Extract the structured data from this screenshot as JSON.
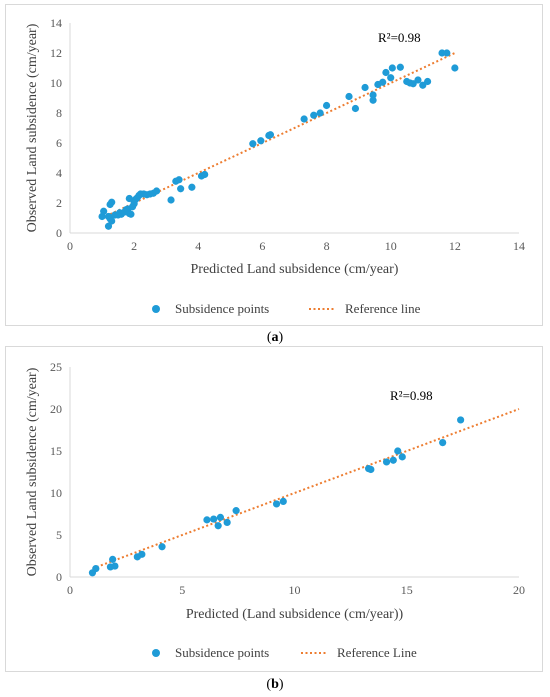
{
  "captions": [
    "a",
    "b"
  ],
  "chart_data": [
    {
      "type": "scatter",
      "xlabel": "Predicted Land subsidence (cm/year)",
      "ylabel": "Observed Land subsidence (cm/year)",
      "xlim": [
        0,
        14
      ],
      "ylim": [
        0,
        14
      ],
      "xticks": [
        "0",
        "2",
        "4",
        "6",
        "8",
        "10",
        "12",
        "14"
      ],
      "yticks": [
        "0",
        "2",
        "4",
        "6",
        "8",
        "10",
        "12",
        "14"
      ],
      "annotation": "R²=0.98",
      "legend_placement": "bottom",
      "legend": [
        "Subsidence points",
        "Reference line"
      ],
      "grid": false,
      "colors": {
        "points": "#1f9bd7",
        "reference": "#ed7d31"
      },
      "reference_line": [
        [
          1,
          1
        ],
        [
          12,
          12
        ]
      ],
      "series": [
        {
          "name": "Subsidence points",
          "points": [
            [
              1.0,
              1.1
            ],
            [
              1.05,
              1.45
            ],
            [
              1.2,
              1.1
            ],
            [
              1.25,
              0.95
            ],
            [
              1.2,
              0.45
            ],
            [
              1.3,
              0.8
            ],
            [
              1.25,
              1.9
            ],
            [
              1.3,
              2.05
            ],
            [
              1.4,
              1.2
            ],
            [
              1.5,
              1.2
            ],
            [
              1.55,
              1.35
            ],
            [
              1.6,
              1.25
            ],
            [
              1.7,
              1.4
            ],
            [
              1.75,
              1.55
            ],
            [
              1.8,
              1.6
            ],
            [
              1.85,
              1.3
            ],
            [
              1.85,
              2.3
            ],
            [
              1.9,
              1.25
            ],
            [
              1.95,
              1.75
            ],
            [
              2.0,
              1.95
            ],
            [
              2.0,
              2.1
            ],
            [
              2.05,
              2.25
            ],
            [
              2.1,
              2.35
            ],
            [
              2.15,
              2.5
            ],
            [
              2.2,
              2.6
            ],
            [
              2.3,
              2.6
            ],
            [
              2.4,
              2.55
            ],
            [
              2.5,
              2.6
            ],
            [
              2.6,
              2.65
            ],
            [
              2.7,
              2.8
            ],
            [
              3.15,
              2.2
            ],
            [
              3.3,
              3.45
            ],
            [
              3.4,
              3.55
            ],
            [
              3.45,
              2.95
            ],
            [
              3.8,
              3.05
            ],
            [
              4.1,
              3.8
            ],
            [
              4.2,
              3.9
            ],
            [
              5.7,
              5.95
            ],
            [
              5.95,
              6.15
            ],
            [
              6.2,
              6.5
            ],
            [
              6.25,
              6.55
            ],
            [
              7.3,
              7.6
            ],
            [
              7.6,
              7.85
            ],
            [
              7.8,
              8.0
            ],
            [
              8.0,
              8.5
            ],
            [
              8.7,
              9.1
            ],
            [
              8.9,
              8.3
            ],
            [
              9.2,
              9.7
            ],
            [
              9.45,
              9.2
            ],
            [
              9.45,
              8.85
            ],
            [
              9.6,
              9.9
            ],
            [
              9.75,
              10.05
            ],
            [
              9.85,
              10.7
            ],
            [
              10.0,
              10.35
            ],
            [
              10.05,
              11.0
            ],
            [
              10.3,
              11.05
            ],
            [
              10.5,
              10.1
            ],
            [
              10.6,
              10.0
            ],
            [
              10.7,
              9.95
            ],
            [
              10.85,
              10.2
            ],
            [
              11.0,
              9.85
            ],
            [
              11.15,
              10.1
            ],
            [
              11.6,
              12.0
            ],
            [
              11.75,
              12.0
            ],
            [
              12.0,
              11.0
            ]
          ]
        }
      ]
    },
    {
      "type": "scatter",
      "xlabel": "Predicted (Land subsidence (cm/year))",
      "ylabel": "Observed Land subsidence (cm/year)",
      "xlim": [
        0,
        20
      ],
      "ylim": [
        0,
        25
      ],
      "xticks": [
        "0",
        "5",
        "10",
        "15",
        "20"
      ],
      "yticks": [
        "0",
        "5",
        "10",
        "15",
        "20",
        "25"
      ],
      "annotation": "R²=0.98",
      "legend_placement": "bottom",
      "legend": [
        "Subsidence points",
        "Reference Line"
      ],
      "grid": false,
      "colors": {
        "points": "#1f9bd7",
        "reference": "#ed7d31"
      },
      "reference_line": [
        [
          1,
          1
        ],
        [
          20,
          20
        ]
      ],
      "series": [
        {
          "name": "Subsidence points",
          "points": [
            [
              1.0,
              0.5
            ],
            [
              1.15,
              1.0
            ],
            [
              1.8,
              1.2
            ],
            [
              1.9,
              2.1
            ],
            [
              2.0,
              1.3
            ],
            [
              3.0,
              2.4
            ],
            [
              3.2,
              2.7
            ],
            [
              4.1,
              3.6
            ],
            [
              6.1,
              6.8
            ],
            [
              6.4,
              6.9
            ],
            [
              6.6,
              6.1
            ],
            [
              6.7,
              7.1
            ],
            [
              7.0,
              6.5
            ],
            [
              7.4,
              7.9
            ],
            [
              9.2,
              8.7
            ],
            [
              9.5,
              9.0
            ],
            [
              13.3,
              12.9
            ],
            [
              13.4,
              12.8
            ],
            [
              14.1,
              13.7
            ],
            [
              14.4,
              13.9
            ],
            [
              14.6,
              15.0
            ],
            [
              14.8,
              14.3
            ],
            [
              16.6,
              16.0
            ],
            [
              17.4,
              18.7
            ]
          ]
        }
      ]
    }
  ]
}
